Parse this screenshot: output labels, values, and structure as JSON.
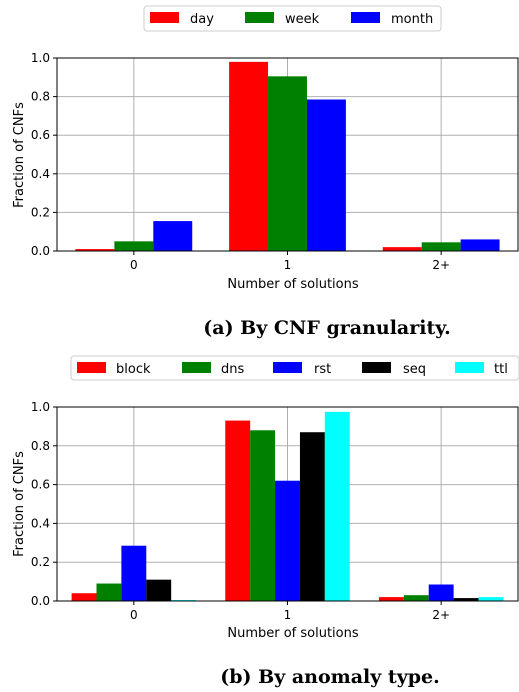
{
  "chart_data": [
    {
      "type": "bar",
      "caption": "(a) By CNF granularity.",
      "xlabel": "Number of solutions",
      "ylabel": "Fraction of CNFs",
      "categories": [
        "0",
        "1",
        "2+"
      ],
      "ylim": [
        0,
        1.0
      ],
      "yticks": [
        "0.0",
        "0.2",
        "0.4",
        "0.6",
        "0.8",
        "1.0"
      ],
      "grid": true,
      "legend_position": "top",
      "series": [
        {
          "name": "day",
          "color": "#ff0000",
          "values": [
            0.01,
            0.98,
            0.02
          ]
        },
        {
          "name": "week",
          "color": "#008000",
          "values": [
            0.05,
            0.905,
            0.045
          ]
        },
        {
          "name": "month",
          "color": "#0000ff",
          "values": [
            0.155,
            0.785,
            0.06
          ]
        }
      ]
    },
    {
      "type": "bar",
      "caption": "(b) By anomaly type.",
      "xlabel": "Number of solutions",
      "ylabel": "Fraction of CNFs",
      "categories": [
        "0",
        "1",
        "2+"
      ],
      "ylim": [
        0,
        1.0
      ],
      "yticks": [
        "0.0",
        "0.2",
        "0.4",
        "0.6",
        "0.8",
        "1.0"
      ],
      "grid": true,
      "legend_position": "top",
      "series": [
        {
          "name": "block",
          "color": "#ff0000",
          "values": [
            0.04,
            0.93,
            0.02
          ]
        },
        {
          "name": "dns",
          "color": "#008000",
          "values": [
            0.09,
            0.88,
            0.03
          ]
        },
        {
          "name": "rst",
          "color": "#0000ff",
          "values": [
            0.285,
            0.62,
            0.085
          ]
        },
        {
          "name": "seq",
          "color": "#000000",
          "values": [
            0.11,
            0.87,
            0.015
          ]
        },
        {
          "name": "ttl",
          "color": "#00ffff",
          "values": [
            0.005,
            0.975,
            0.02
          ]
        }
      ]
    }
  ]
}
